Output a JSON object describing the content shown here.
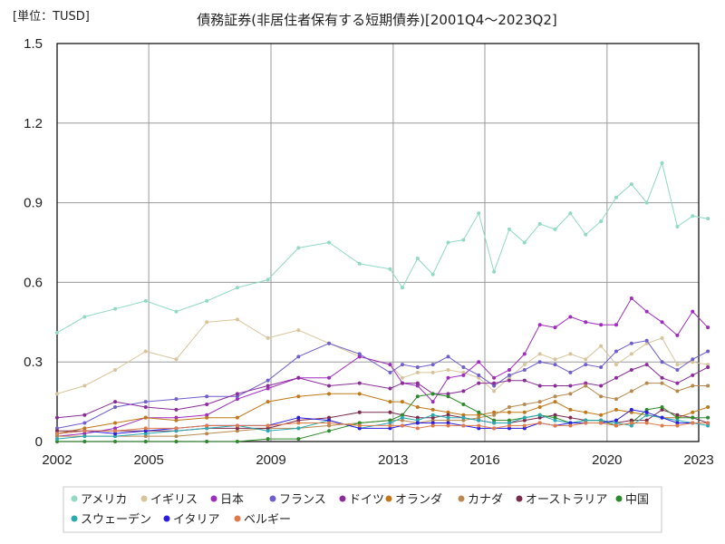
{
  "chart_data": {
    "type": "line",
    "unit_label": "[単位：TUSD]",
    "title": "債務証券(非居住者保有する短期債券)[2001Q4～2023Q2]",
    "xlabel": "",
    "ylabel": "",
    "xlim": [
      2002,
      2023
    ],
    "ylim": [
      0,
      1.5
    ],
    "x_ticks": [
      2002,
      2005,
      2009,
      2013,
      2016,
      2020,
      2023
    ],
    "y_ticks": [
      0,
      0.3,
      0.6,
      0.9,
      1.2,
      1.5
    ],
    "y_tick_labels": [
      "0",
      "0.3",
      "0.6",
      "0.9",
      "1.2",
      "1.5"
    ],
    "grid": true,
    "legend_position": "bottom",
    "x": [
      2002.0,
      2002.9,
      2003.9,
      2004.9,
      2005.9,
      2006.9,
      2007.9,
      2008.9,
      2009.9,
      2010.9,
      2011.9,
      2012.9,
      2013.3,
      2013.8,
      2014.3,
      2014.8,
      2015.3,
      2015.8,
      2016.3,
      2016.8,
      2017.3,
      2017.8,
      2018.3,
      2018.8,
      2019.3,
      2019.8,
      2020.3,
      2020.8,
      2021.3,
      2021.8,
      2022.3,
      2022.8,
      2023.3
    ],
    "series": [
      {
        "name": "アメリカ",
        "color": "#8fd9c5",
        "values": [
          0.41,
          0.47,
          0.5,
          0.53,
          0.49,
          0.53,
          0.58,
          0.61,
          0.73,
          0.75,
          0.67,
          0.65,
          0.58,
          0.69,
          0.63,
          0.75,
          0.76,
          0.86,
          0.64,
          0.8,
          0.75,
          0.82,
          0.8,
          0.86,
          0.78,
          0.83,
          0.92,
          0.97,
          0.9,
          1.05,
          0.81,
          0.85,
          0.84
        ]
      },
      {
        "name": "イギリス",
        "color": "#d8c49b",
        "values": [
          0.18,
          0.21,
          0.27,
          0.34,
          0.31,
          0.45,
          0.46,
          0.39,
          0.42,
          0.37,
          0.32,
          0.29,
          0.24,
          0.26,
          0.26,
          0.27,
          0.26,
          0.24,
          0.19,
          0.24,
          0.29,
          0.33,
          0.31,
          0.33,
          0.31,
          0.36,
          0.29,
          0.33,
          0.37,
          0.39,
          0.29,
          0.3,
          0.29
        ]
      },
      {
        "name": "日本",
        "color": "#a02bbf",
        "values": [
          0.02,
          0.03,
          0.05,
          0.09,
          0.09,
          0.1,
          0.16,
          0.2,
          0.24,
          0.24,
          0.32,
          0.29,
          0.22,
          0.21,
          0.15,
          0.24,
          0.25,
          0.3,
          0.24,
          0.27,
          0.33,
          0.44,
          0.43,
          0.47,
          0.45,
          0.44,
          0.44,
          0.54,
          0.49,
          0.45,
          0.4,
          0.49,
          0.43
        ]
      },
      {
        "name": "フランス",
        "color": "#6f5fce",
        "values": [
          0.05,
          0.07,
          0.13,
          0.15,
          0.16,
          0.17,
          0.17,
          0.23,
          0.32,
          0.37,
          0.33,
          0.26,
          0.29,
          0.28,
          0.29,
          0.32,
          0.28,
          0.25,
          0.21,
          0.25,
          0.27,
          0.3,
          0.29,
          0.26,
          0.29,
          0.28,
          0.34,
          0.37,
          0.38,
          0.3,
          0.27,
          0.31,
          0.34
        ]
      },
      {
        "name": "ドイツ",
        "color": "#8b2c9a",
        "values": [
          0.09,
          0.1,
          0.15,
          0.13,
          0.12,
          0.14,
          0.18,
          0.21,
          0.24,
          0.21,
          0.22,
          0.2,
          0.22,
          0.22,
          0.18,
          0.18,
          0.19,
          0.22,
          0.22,
          0.23,
          0.23,
          0.21,
          0.21,
          0.21,
          0.22,
          0.21,
          0.24,
          0.27,
          0.29,
          0.24,
          0.22,
          0.25,
          0.28
        ]
      },
      {
        "name": "オランダ",
        "color": "#c07818",
        "values": [
          0.03,
          0.05,
          0.07,
          0.09,
          0.08,
          0.09,
          0.09,
          0.15,
          0.17,
          0.18,
          0.18,
          0.15,
          0.15,
          0.13,
          0.12,
          0.11,
          0.1,
          0.1,
          0.11,
          0.11,
          0.11,
          0.13,
          0.15,
          0.12,
          0.11,
          0.1,
          0.12,
          0.11,
          0.1,
          0.09,
          0.09,
          0.11,
          0.13
        ]
      },
      {
        "name": "カナダ",
        "color": "#b8894f",
        "values": [
          0.02,
          0.02,
          0.02,
          0.02,
          0.02,
          0.03,
          0.04,
          0.05,
          0.05,
          0.06,
          0.07,
          0.08,
          0.08,
          0.07,
          0.08,
          0.08,
          0.08,
          0.09,
          0.1,
          0.13,
          0.14,
          0.15,
          0.17,
          0.18,
          0.21,
          0.17,
          0.16,
          0.19,
          0.22,
          0.22,
          0.19,
          0.21,
          0.21
        ]
      },
      {
        "name": "オーストラリア",
        "color": "#7a2a4c",
        "values": [
          0.04,
          0.04,
          0.04,
          0.04,
          0.04,
          0.05,
          0.05,
          0.05,
          0.08,
          0.09,
          0.11,
          0.11,
          0.1,
          0.09,
          0.09,
          0.1,
          0.09,
          0.08,
          0.07,
          0.07,
          0.08,
          0.09,
          0.1,
          0.09,
          0.08,
          0.08,
          0.07,
          0.08,
          0.08,
          0.12,
          0.1,
          0.09,
          0.07
        ]
      },
      {
        "name": "中国",
        "color": "#2d8a2a",
        "values": [
          0.0,
          0.0,
          0.0,
          0.0,
          0.0,
          0.0,
          0.0,
          0.01,
          0.01,
          0.04,
          0.07,
          0.08,
          0.1,
          0.17,
          0.18,
          0.17,
          0.14,
          0.11,
          0.08,
          0.08,
          0.09,
          0.1,
          0.09,
          0.07,
          0.08,
          0.08,
          0.06,
          0.07,
          0.12,
          0.13,
          0.09,
          0.09,
          0.09
        ]
      },
      {
        "name": "スウェーデン",
        "color": "#2aa9b3",
        "values": [
          0.01,
          0.02,
          0.02,
          0.03,
          0.04,
          0.05,
          0.06,
          0.04,
          0.05,
          0.08,
          0.05,
          0.07,
          0.09,
          0.08,
          0.1,
          0.09,
          0.09,
          0.08,
          0.07,
          0.07,
          0.09,
          0.1,
          0.08,
          0.07,
          0.08,
          0.08,
          0.07,
          0.06,
          0.1,
          0.09,
          0.08,
          0.07,
          0.06
        ]
      },
      {
        "name": "イタリア",
        "color": "#2b1ce0",
        "values": [
          0.03,
          0.04,
          0.03,
          0.04,
          0.05,
          0.06,
          0.06,
          0.06,
          0.09,
          0.08,
          0.05,
          0.05,
          0.06,
          0.07,
          0.07,
          0.07,
          0.06,
          0.05,
          0.05,
          0.05,
          0.05,
          0.07,
          0.06,
          0.07,
          0.07,
          0.07,
          0.08,
          0.12,
          0.11,
          0.09,
          0.07,
          0.07,
          0.07
        ]
      },
      {
        "name": "ベルギー",
        "color": "#e07a4b",
        "values": [
          0.03,
          0.04,
          0.04,
          0.05,
          0.05,
          0.06,
          0.06,
          0.06,
          0.07,
          0.07,
          0.06,
          0.06,
          0.06,
          0.05,
          0.06,
          0.06,
          0.06,
          0.06,
          0.05,
          0.06,
          0.06,
          0.07,
          0.06,
          0.06,
          0.07,
          0.07,
          0.06,
          0.07,
          0.07,
          0.06,
          0.06,
          0.07,
          0.07
        ]
      }
    ]
  }
}
